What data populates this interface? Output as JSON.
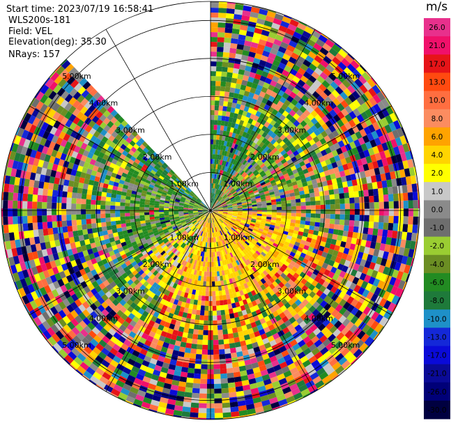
{
  "meta": {
    "start_time": "Start time: 2023/07/19 16:58:41",
    "site": "WLS200s-181",
    "field": "Field: VEL",
    "elevation": "Elevation(deg): 35.30",
    "nrays": "NRays: 157"
  },
  "colorbar": {
    "unit": "m/s",
    "levels": [
      {
        "label": "26.0",
        "color": "#e8308c"
      },
      {
        "label": "21.0",
        "color": "#f0106a"
      },
      {
        "label": "17.0",
        "color": "#e61418"
      },
      {
        "label": "13.0",
        "color": "#ff4a10"
      },
      {
        "label": "10.0",
        "color": "#ff6e40"
      },
      {
        "label": "8.0",
        "color": "#fb8c60"
      },
      {
        "label": "6.0",
        "color": "#ffa300"
      },
      {
        "label": "4.0",
        "color": "#ffd400"
      },
      {
        "label": "2.0",
        "color": "#ffff00"
      },
      {
        "label": "1.0",
        "color": "#c8c8c8"
      },
      {
        "label": "0.0",
        "color": "#8a8a8a"
      },
      {
        "label": "-1.0",
        "color": "#6e6e6e"
      },
      {
        "label": "-2.0",
        "color": "#9acd32"
      },
      {
        "label": "-4.0",
        "color": "#6b8e23"
      },
      {
        "label": "-6.0",
        "color": "#228b22"
      },
      {
        "label": "-8.0",
        "color": "#1e7a3a"
      },
      {
        "label": "-10.0",
        "color": "#1e90c8"
      },
      {
        "label": "-13.0",
        "color": "#1428d8"
      },
      {
        "label": "-17.0",
        "color": "#0a0ad8"
      },
      {
        "label": "-21.0",
        "color": "#0a0a96"
      },
      {
        "label": "-26.0",
        "color": "#000078"
      },
      {
        "label": "-30.0",
        "color": "#000040"
      }
    ]
  },
  "rings": {
    "labels": [
      "1.00km",
      "2.00km",
      "3.00km",
      "4.00km",
      "5.00km"
    ]
  }
}
